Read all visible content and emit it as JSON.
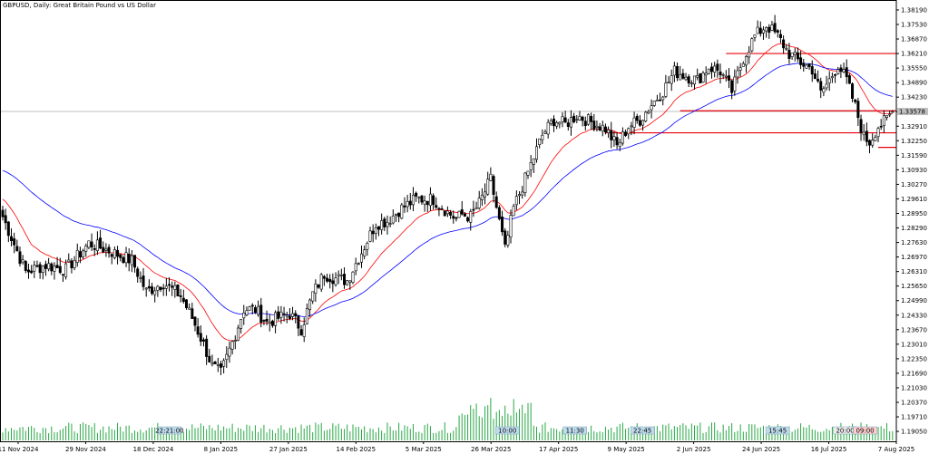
{
  "header": {
    "title": "GBPUSD, Daily:  Great Britain Pound vs US Dollar"
  },
  "chart_data": {
    "type": "candlestick",
    "symbol": "GBPUSD",
    "timeframe": "Daily",
    "ylim": [
      1.186,
      1.386
    ],
    "y_ticks": [
      "1.38190",
      "1.37530",
      "1.36870",
      "1.36210",
      "1.35550",
      "1.34890",
      "1.34230",
      "1.33570",
      "1.32910",
      "1.32250",
      "1.31590",
      "1.30930",
      "1.30270",
      "1.29610",
      "1.28950",
      "1.28290",
      "1.27630",
      "1.26970",
      "1.26310",
      "1.25650",
      "1.24990",
      "1.24330",
      "1.23670",
      "1.23010",
      "1.22350",
      "1.21690",
      "1.21030",
      "1.20370",
      "1.19710",
      "1.19050"
    ],
    "x_ticks": [
      "11 Nov 2024",
      "29 Nov 2024",
      "18 Dec 2024",
      "8 Jan 2025",
      "27 Jan 2025",
      "14 Feb 2025",
      "5 Mar 2025",
      "26 Mar 2025",
      "17 Apr 2025",
      "9 May 2025",
      "2 Jun 2025",
      "24 Jun 2025",
      "16 Jul 2025",
      "7 Aug 2025"
    ],
    "current_price_label": "1.33578",
    "levels": [
      {
        "value": 1.3621,
        "color": "#e8000b"
      },
      {
        "value": 1.3361,
        "color": "#e8000b"
      },
      {
        "value": 1.3261,
        "color": "#e8000b"
      },
      {
        "value": 1.3195,
        "color": "#e8000b"
      }
    ],
    "current_price": 1.3358,
    "anchors": [
      [
        0,
        1.288
      ],
      [
        8,
        1.263
      ],
      [
        15,
        1.266
      ],
      [
        22,
        1.264
      ],
      [
        30,
        1.276
      ],
      [
        38,
        1.272
      ],
      [
        45,
        1.268
      ],
      [
        50,
        1.254
      ],
      [
        56,
        1.258
      ],
      [
        62,
        1.252
      ],
      [
        66,
        1.242
      ],
      [
        70,
        1.23
      ],
      [
        73,
        1.22
      ],
      [
        76,
        1.217
      ],
      [
        80,
        1.231
      ],
      [
        84,
        1.246
      ],
      [
        88,
        1.246
      ],
      [
        92,
        1.24
      ],
      [
        96,
        1.242
      ],
      [
        100,
        1.244
      ],
      [
        104,
        1.237
      ],
      [
        108,
        1.253
      ],
      [
        112,
        1.262
      ],
      [
        116,
        1.26
      ],
      [
        120,
        1.259
      ],
      [
        125,
        1.272
      ],
      [
        130,
        1.285
      ],
      [
        134,
        1.286
      ],
      [
        138,
        1.291
      ],
      [
        144,
        1.296
      ],
      [
        150,
        1.296
      ],
      [
        155,
        1.29
      ],
      [
        158,
        1.287
      ],
      [
        160,
        1.289
      ],
      [
        163,
        1.288
      ],
      [
        166,
        1.294
      ],
      [
        170,
        1.305
      ],
      [
        175,
        1.273
      ],
      [
        178,
        1.292
      ],
      [
        182,
        1.305
      ],
      [
        188,
        1.325
      ],
      [
        192,
        1.332
      ],
      [
        196,
        1.33
      ],
      [
        200,
        1.334
      ],
      [
        205,
        1.331
      ],
      [
        210,
        1.328
      ],
      [
        214,
        1.32
      ],
      [
        218,
        1.329
      ],
      [
        222,
        1.332
      ],
      [
        226,
        1.339
      ],
      [
        230,
        1.345
      ],
      [
        234,
        1.354
      ],
      [
        238,
        1.352
      ],
      [
        242,
        1.35
      ],
      [
        246,
        1.356
      ],
      [
        250,
        1.354
      ],
      [
        254,
        1.345
      ],
      [
        258,
        1.36
      ],
      [
        262,
        1.37
      ],
      [
        266,
        1.375
      ],
      [
        270,
        1.37
      ],
      [
        274,
        1.362
      ],
      [
        278,
        1.358
      ],
      [
        282,
        1.355
      ],
      [
        285,
        1.344
      ],
      [
        288,
        1.35
      ],
      [
        291,
        1.357
      ],
      [
        294,
        1.35
      ],
      [
        297,
        1.338
      ],
      [
        300,
        1.324
      ],
      [
        302,
        1.322
      ],
      [
        305,
        1.329
      ],
      [
        308,
        1.332
      ],
      [
        310,
        1.3358
      ]
    ],
    "ma_fast": {
      "color": "#ff0000"
    },
    "ma_slow": {
      "color": "#0000ff"
    },
    "volume": {
      "color": "#28a745"
    },
    "session_markers": [
      {
        "label": "22:21:00",
        "bg": "#c0ddee",
        "at": "18 Dec 2024"
      },
      {
        "label": "10:00",
        "bg": "#c0ddee",
        "at": "26 Mar 2025"
      },
      {
        "label": "11:30",
        "bg": "#c0ddee",
        "at": "17 Apr 2025"
      },
      {
        "label": "22:45",
        "bg": "#c0ddee",
        "at": "9 May 2025"
      },
      {
        "label": "15:45",
        "bg": "#c0ddee",
        "at": "24 Jun 2025"
      },
      {
        "label": "20:00",
        "bg": "#eeeeee",
        "at": "16 Jul 2025"
      },
      {
        "label": "09:00",
        "bg": "#ffd0d0",
        "at": "16 Jul 2025"
      }
    ]
  }
}
